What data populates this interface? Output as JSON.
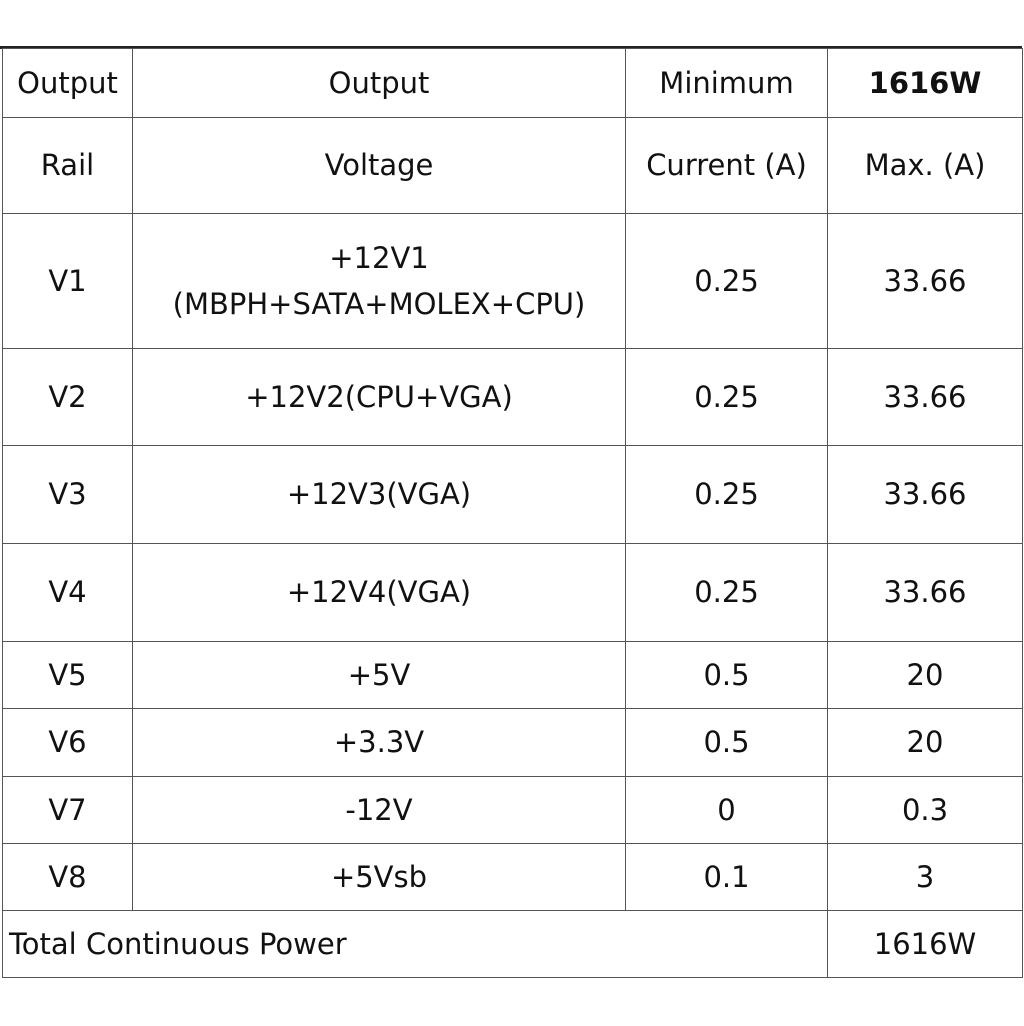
{
  "table": {
    "header": [
      [
        "Output",
        "Rail"
      ],
      [
        "Output",
        "Voltage"
      ],
      [
        "Minimum",
        "Current (A)"
      ],
      [
        "1616W",
        "Max. (A)"
      ]
    ],
    "rows": [
      [
        "V1",
        [
          "+12V1",
          "(MBPH+SATA+MOLEX+CPU)"
        ],
        "0.25",
        "33.66"
      ],
      [
        "V2",
        [
          "+12V2(CPU+VGA)"
        ],
        "0.25",
        "33.66"
      ],
      [
        "V3",
        [
          "+12V3(VGA)"
        ],
        "0.25",
        "33.66"
      ],
      [
        "V4",
        [
          "+12V4(VGA)"
        ],
        "0.25",
        "33.66"
      ],
      [
        "V5",
        [
          "+5V"
        ],
        "0.5",
        "20"
      ],
      [
        "V6",
        [
          "+3.3V"
        ],
        "0.5",
        "20"
      ],
      [
        "V7",
        [
          "-12V"
        ],
        "0",
        "0.3"
      ],
      [
        "V8",
        [
          "+5Vsb"
        ],
        "0.1",
        "3"
      ]
    ],
    "footer": [
      "Total Continuous Power",
      "1616W"
    ]
  }
}
